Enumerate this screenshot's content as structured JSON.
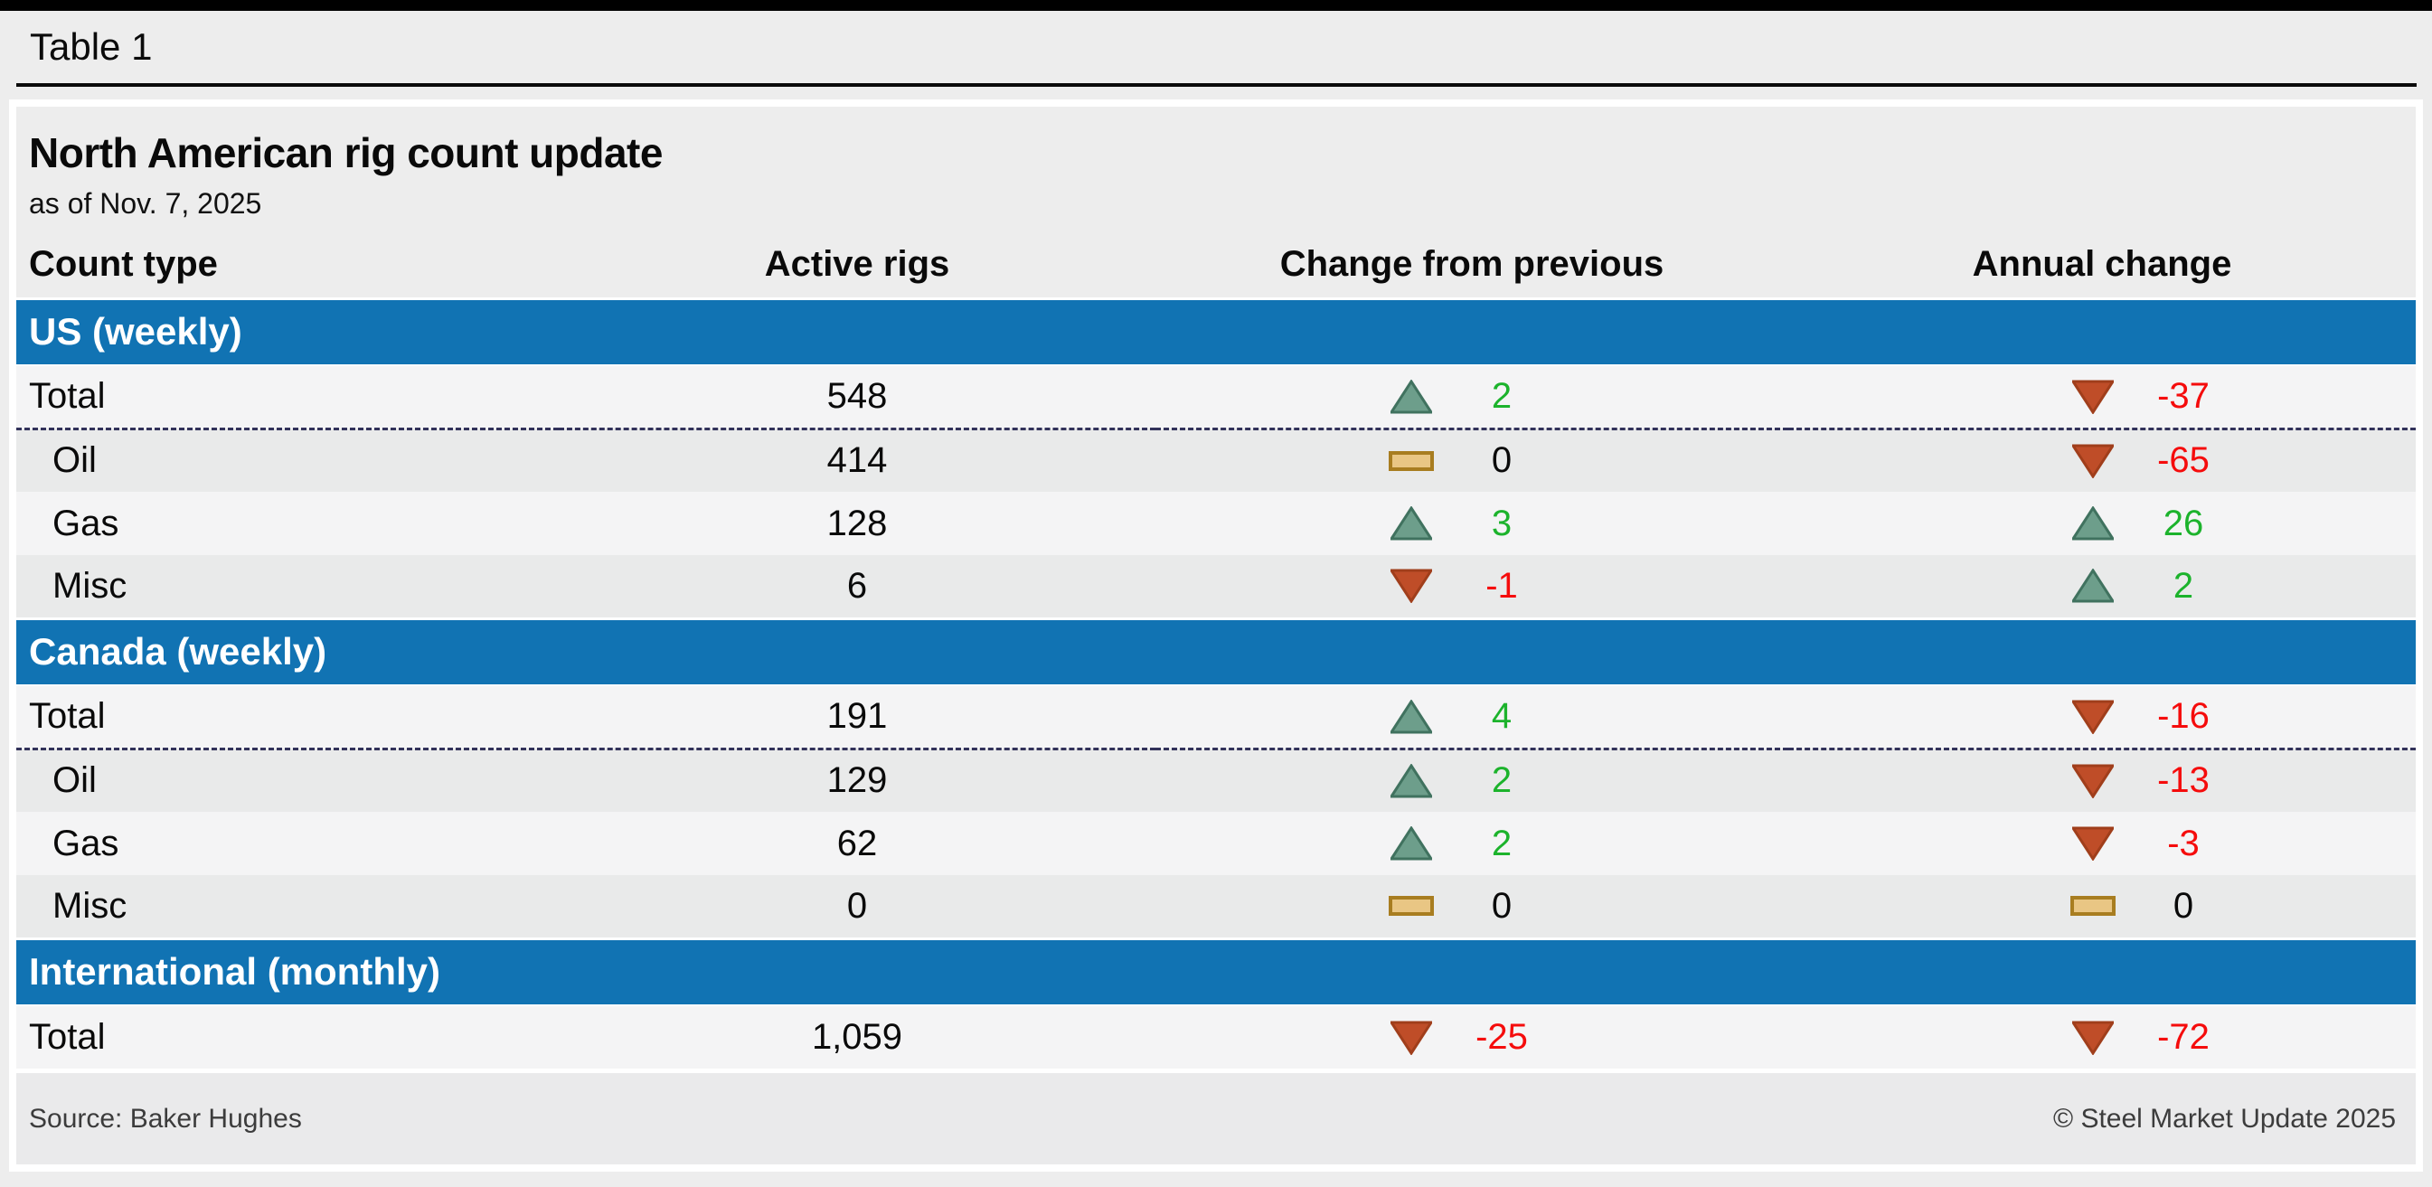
{
  "page": {
    "tab_label": "Table 1"
  },
  "chart_data": {
    "type": "table",
    "title": "North American rig count update",
    "subtitle": "as of Nov. 7, 2025",
    "columns": [
      "Count type",
      "Active rigs",
      "Change from previous",
      "Annual change"
    ],
    "sections": [
      {
        "label": "US (weekly)",
        "rows": [
          {
            "count_type": "Total",
            "is_total": true,
            "active_rigs": "548",
            "change_from_previous": {
              "direction": "up",
              "value": "2"
            },
            "annual_change": {
              "direction": "down",
              "value": "-37"
            }
          },
          {
            "count_type": "Oil",
            "is_total": false,
            "active_rigs": "414",
            "change_from_previous": {
              "direction": "flat",
              "value": "0"
            },
            "annual_change": {
              "direction": "down",
              "value": "-65"
            }
          },
          {
            "count_type": "Gas",
            "is_total": false,
            "active_rigs": "128",
            "change_from_previous": {
              "direction": "up",
              "value": "3"
            },
            "annual_change": {
              "direction": "up",
              "value": "26"
            }
          },
          {
            "count_type": "Misc",
            "is_total": false,
            "active_rigs": "6",
            "change_from_previous": {
              "direction": "down",
              "value": "-1"
            },
            "annual_change": {
              "direction": "up",
              "value": "2"
            }
          }
        ]
      },
      {
        "label": "Canada (weekly)",
        "rows": [
          {
            "count_type": "Total",
            "is_total": true,
            "active_rigs": "191",
            "change_from_previous": {
              "direction": "up",
              "value": "4"
            },
            "annual_change": {
              "direction": "down",
              "value": "-16"
            }
          },
          {
            "count_type": "Oil",
            "is_total": false,
            "active_rigs": "129",
            "change_from_previous": {
              "direction": "up",
              "value": "2"
            },
            "annual_change": {
              "direction": "down",
              "value": "-13"
            }
          },
          {
            "count_type": "Gas",
            "is_total": false,
            "active_rigs": "62",
            "change_from_previous": {
              "direction": "up",
              "value": "2"
            },
            "annual_change": {
              "direction": "down",
              "value": "-3"
            }
          },
          {
            "count_type": "Misc",
            "is_total": false,
            "active_rigs": "0",
            "change_from_previous": {
              "direction": "flat",
              "value": "0"
            },
            "annual_change": {
              "direction": "flat",
              "value": "0"
            }
          }
        ]
      },
      {
        "label": "International (monthly)",
        "rows": [
          {
            "count_type": "Total",
            "is_total": true,
            "active_rigs": "1,059",
            "change_from_previous": {
              "direction": "down",
              "value": "-25"
            },
            "annual_change": {
              "direction": "down",
              "value": "-72"
            }
          }
        ]
      }
    ],
    "source": "Source: Baker Hughes",
    "copyright": "© Steel Market Update 2025"
  },
  "icons": {
    "up": "up-triangle-icon",
    "down": "down-triangle-icon",
    "flat": "no-change-icon"
  },
  "colors": {
    "section_header_bg": "#1173B3",
    "section_header_text": "#FFFFFF",
    "row_light": "#F4F4F5",
    "row_dark": "#E9EAEA",
    "panel_bg": "#EDEDED",
    "positive_text": "#1CB32C",
    "negative_text": "#F50C0C",
    "neutral_text": "#0A0A0A",
    "up_triangle_fill": "#6D9E8B",
    "up_triangle_border": "#40725F",
    "down_triangle_fill": "#BF4D28",
    "down_triangle_border": "#A03E1B",
    "no_change_fill": "#E9C684",
    "no_change_border": "#A87D20",
    "total_divider": "#32325A"
  }
}
